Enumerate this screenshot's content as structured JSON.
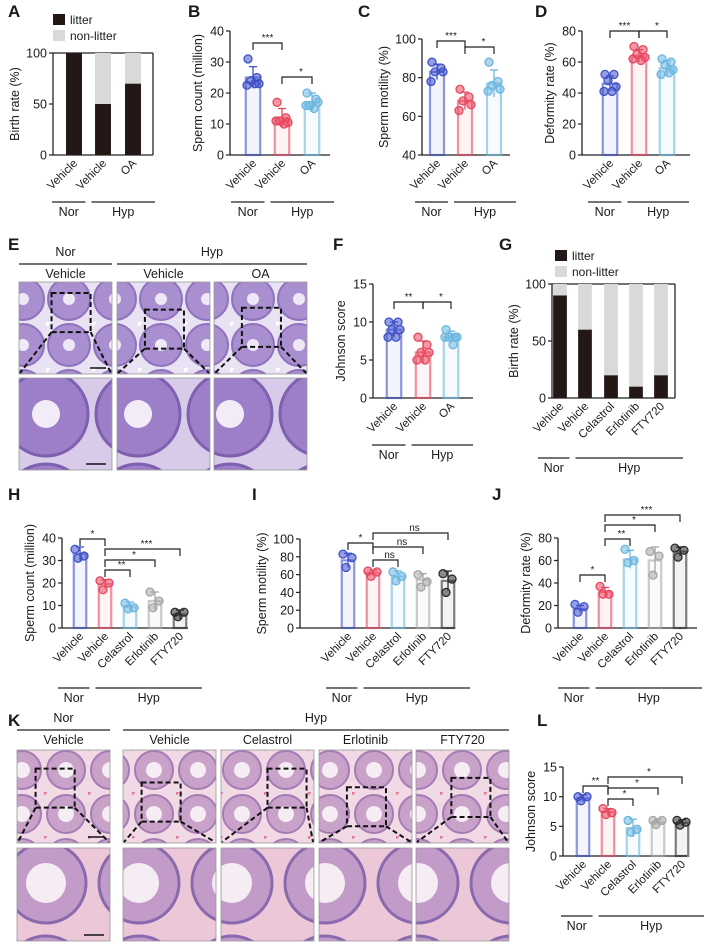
{
  "panel_labels": [
    "A",
    "B",
    "C",
    "D",
    "E",
    "F",
    "G",
    "H",
    "I",
    "J",
    "K",
    "L"
  ],
  "micrographs": {
    "E": {
      "group_headers": [
        "Nor",
        "Hyp"
      ],
      "columns": [
        "Vehicle",
        "Vehicle",
        "OA"
      ]
    },
    "K": {
      "group_headers": [
        "Nor",
        "Hyp"
      ],
      "columns": [
        "Vehicle",
        "Vehicle",
        "Celastrol",
        "Erlotinib",
        "FTY720"
      ]
    }
  },
  "chart_data": [
    {
      "panel": "A",
      "type": "bar",
      "stacked": true,
      "ylabel": "Birth rate (%)",
      "ylim": [
        0,
        100
      ],
      "yticks": [
        0,
        50,
        100
      ],
      "categories": [
        "Vehicle",
        "Vehicle",
        "OA"
      ],
      "groups": [
        "Nor",
        "Hyp"
      ],
      "series": [
        {
          "name": "litter",
          "values": [
            100,
            50,
            70
          ],
          "color": "#231815"
        },
        {
          "name": "non-litter",
          "values": [
            0,
            50,
            30
          ],
          "color": "#d9d9d9"
        }
      ],
      "legend": "top-left"
    },
    {
      "panel": "B",
      "type": "bar",
      "ylabel": "Sperm count (million)",
      "ylim": [
        0,
        40
      ],
      "yticks": [
        0,
        10,
        20,
        30,
        40
      ],
      "categories": [
        "Vehicle",
        "Vehicle",
        "OA"
      ],
      "groups": [
        "Nor",
        "Hyp"
      ],
      "colors": [
        "#3f51c8",
        "#e8475f",
        "#6cb6e0"
      ],
      "means": [
        25,
        12,
        17
      ],
      "sd": [
        3.5,
        3,
        3
      ],
      "points": [
        [
          31,
          25,
          24,
          23,
          22.5,
          23
        ],
        [
          17,
          12,
          11,
          10.5,
          11,
          10
        ],
        [
          20,
          18,
          16,
          17,
          16,
          15
        ]
      ],
      "comparisons": [
        {
          "pair": [
            0,
            1
          ],
          "label": "***"
        },
        {
          "pair": [
            1,
            2
          ],
          "label": "*"
        }
      ]
    },
    {
      "panel": "C",
      "type": "bar",
      "ylabel": "Sperm motility (%)",
      "ylim": [
        40,
        100
      ],
      "yticks": [
        40,
        60,
        80,
        100
      ],
      "categories": [
        "Vehicle",
        "Vehicle",
        "OA"
      ],
      "groups": [
        "Nor",
        "Hyp"
      ],
      "colors": [
        "#3f51c8",
        "#e8475f",
        "#6cb6e0"
      ],
      "means": [
        83,
        68,
        77
      ],
      "sd": [
        4,
        4.5,
        7
      ],
      "points": [
        [
          88,
          85,
          83,
          83,
          78
        ],
        [
          74,
          70,
          68,
          66,
          63
        ],
        [
          88,
          78,
          76,
          74,
          73
        ]
      ],
      "comparisons": [
        {
          "pair": [
            0,
            1
          ],
          "label": "***"
        },
        {
          "pair": [
            1,
            2
          ],
          "label": "*"
        }
      ]
    },
    {
      "panel": "D",
      "type": "bar",
      "ylabel": "Deformity rate (%)",
      "ylim": [
        0,
        80
      ],
      "yticks": [
        0,
        20,
        40,
        60,
        80
      ],
      "categories": [
        "Vehicle",
        "Vehicle",
        "OA"
      ],
      "groups": [
        "Nor",
        "Hyp"
      ],
      "colors": [
        "#3f51c8",
        "#e8475f",
        "#6cb6e0"
      ],
      "means": [
        46,
        64,
        56
      ],
      "sd": [
        5,
        4,
        5
      ],
      "points": [
        [
          52,
          52,
          48,
          44,
          41,
          41
        ],
        [
          70,
          68,
          65,
          63,
          62,
          61
        ],
        [
          62,
          60,
          58,
          55,
          52,
          53
        ]
      ],
      "comparisons": [
        {
          "pair": [
            0,
            1
          ],
          "label": "***"
        },
        {
          "pair": [
            1,
            2
          ],
          "label": "*"
        }
      ]
    },
    {
      "panel": "F",
      "type": "bar",
      "ylabel": "Johnson score",
      "ylim": [
        0,
        15
      ],
      "yticks": [
        0,
        5,
        10,
        15
      ],
      "categories": [
        "Vehicle",
        "Vehicle",
        "OA"
      ],
      "groups": [
        "Nor",
        "Hyp"
      ],
      "colors": [
        "#3f51c8",
        "#e8475f",
        "#6cb6e0"
      ],
      "means": [
        9,
        6,
        8
      ],
      "sd": [
        1,
        1.5,
        0.8
      ],
      "points": [
        [
          10,
          10,
          9,
          9,
          8,
          8
        ],
        [
          8,
          7,
          6,
          6,
          5,
          5
        ],
        [
          9,
          8,
          8,
          8,
          8,
          7
        ]
      ],
      "comparisons": [
        {
          "pair": [
            0,
            1
          ],
          "label": "**"
        },
        {
          "pair": [
            1,
            2
          ],
          "label": "*"
        }
      ]
    },
    {
      "panel": "G",
      "type": "bar",
      "stacked": true,
      "ylabel": "Birth rate (%)",
      "ylim": [
        0,
        100
      ],
      "yticks": [
        0,
        50,
        100
      ],
      "categories": [
        "Vehicle",
        "Vehicle",
        "Celastrol",
        "Erlotinib",
        "FTY720"
      ],
      "groups": [
        "Nor",
        "Hyp"
      ],
      "series": [
        {
          "name": "litter",
          "values": [
            90,
            60,
            20,
            10,
            20
          ],
          "color": "#231815"
        },
        {
          "name": "non-litter",
          "values": [
            10,
            40,
            80,
            90,
            80
          ],
          "color": "#d9d9d9"
        }
      ],
      "legend": "top-left"
    },
    {
      "panel": "H",
      "type": "bar",
      "ylabel": "Sperm count (million)",
      "ylim": [
        0,
        40
      ],
      "yticks": [
        0,
        10,
        20,
        30,
        40
      ],
      "categories": [
        "Vehicle",
        "Vehicle",
        "Celastrol",
        "Erlotinib",
        "FTY720"
      ],
      "groups": [
        "Nor",
        "Hyp"
      ],
      "colors": [
        "#3f51c8",
        "#e8475f",
        "#6cb6e0",
        "#a6a6a6",
        "#2b2b2b"
      ],
      "means": [
        33,
        19.5,
        9.5,
        12,
        6
      ],
      "sd": [
        3,
        2,
        2,
        4,
        2
      ],
      "points": [
        [
          35,
          32,
          31
        ],
        [
          21,
          20,
          17
        ],
        [
          11,
          9,
          8.5
        ],
        [
          16,
          12,
          9
        ],
        [
          7,
          7,
          5
        ]
      ],
      "comparisons": [
        {
          "pair": [
            0,
            1
          ],
          "label": "*"
        },
        {
          "pair": [
            1,
            4
          ],
          "label": "***"
        },
        {
          "pair": [
            1,
            3
          ],
          "label": "*"
        },
        {
          "pair": [
            1,
            2
          ],
          "label": "**"
        }
      ]
    },
    {
      "panel": "I",
      "type": "bar",
      "ylabel": "Sperm motility (%)",
      "ylim": [
        0,
        100
      ],
      "yticks": [
        0,
        20,
        40,
        60,
        80,
        100
      ],
      "categories": [
        "Vehicle",
        "Vehicle",
        "Celastrol",
        "Erlotinib",
        "FTY720"
      ],
      "groups": [
        "Nor",
        "Hyp"
      ],
      "colors": [
        "#3f51c8",
        "#e8475f",
        "#6cb6e0",
        "#a6a6a6",
        "#2b2b2b"
      ],
      "means": [
        76,
        62,
        58,
        54,
        53
      ],
      "sd": [
        8,
        3,
        6,
        7,
        11
      ],
      "points": [
        [
          83,
          79,
          68
        ],
        [
          64,
          63,
          58
        ],
        [
          63,
          58,
          53
        ],
        [
          60,
          52,
          46
        ],
        [
          61,
          55,
          40
        ]
      ],
      "comparisons": [
        {
          "pair": [
            0,
            1
          ],
          "label": "*"
        },
        {
          "pair": [
            1,
            4
          ],
          "label": "ns"
        },
        {
          "pair": [
            1,
            3
          ],
          "label": "ns"
        },
        {
          "pair": [
            1,
            2
          ],
          "label": "ns"
        }
      ]
    },
    {
      "panel": "J",
      "type": "bar",
      "ylabel": "Deformity rate (%)",
      "ylim": [
        0,
        80
      ],
      "yticks": [
        0,
        20,
        40,
        60,
        80
      ],
      "categories": [
        "Vehicle",
        "Vehicle",
        "Celastrol",
        "Erlotinib",
        "FTY720"
      ],
      "groups": [
        "Nor",
        "Hyp"
      ],
      "colors": [
        "#3f51c8",
        "#e8475f",
        "#6cb6e0",
        "#a6a6a6",
        "#2b2b2b"
      ],
      "means": [
        17,
        32,
        61,
        60,
        68
      ],
      "sd": [
        3,
        4,
        8,
        12,
        4
      ],
      "points": [
        [
          21,
          19,
          14
        ],
        [
          37,
          30,
          30
        ],
        [
          70,
          60,
          58
        ],
        [
          68,
          64,
          47
        ],
        [
          71,
          69,
          63
        ]
      ],
      "comparisons": [
        {
          "pair": [
            0,
            1
          ],
          "label": "*"
        },
        {
          "pair": [
            1,
            4
          ],
          "label": "***"
        },
        {
          "pair": [
            1,
            3
          ],
          "label": "*"
        },
        {
          "pair": [
            1,
            2
          ],
          "label": "**"
        }
      ]
    },
    {
      "panel": "L",
      "type": "bar",
      "ylabel": "Johnson score",
      "ylim": [
        0,
        15
      ],
      "yticks": [
        0,
        5,
        10,
        15
      ],
      "categories": [
        "Vehicle",
        "Vehicle",
        "Celastrol",
        "Erlotinib",
        "FTY720"
      ],
      "groups": [
        "Nor",
        "Hyp"
      ],
      "colors": [
        "#3f51c8",
        "#e8475f",
        "#6cb6e0",
        "#a6a6a6",
        "#2b2b2b"
      ],
      "means": [
        9.7,
        7.4,
        4.7,
        5.7,
        5.6
      ],
      "sd": [
        0.6,
        0.6,
        1.5,
        0.5,
        0.5
      ],
      "points": [
        [
          10,
          10,
          9.3
        ],
        [
          8,
          7.3,
          7
        ],
        [
          6,
          4.5,
          4
        ],
        [
          6,
          6,
          5.3
        ],
        [
          6,
          5.7,
          5.2
        ]
      ],
      "comparisons": [
        {
          "pair": [
            0,
            1
          ],
          "label": "**"
        },
        {
          "pair": [
            1,
            4
          ],
          "label": "*"
        },
        {
          "pair": [
            1,
            3
          ],
          "label": "*"
        },
        {
          "pair": [
            1,
            2
          ],
          "label": "*"
        }
      ]
    }
  ]
}
